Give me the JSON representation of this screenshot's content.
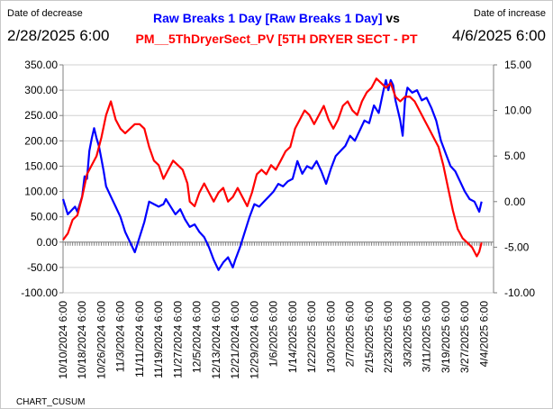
{
  "header": {
    "left_caption": "Date of decrease",
    "right_caption": "Date of increase",
    "left_date": "2/28/2025 6:00",
    "right_date": "4/6/2025 6:00",
    "title_blue": "Raw Breaks 1 Day [Raw Breaks 1 Day]",
    "title_vs": "vs",
    "title_red": "PM__5ThDryerSect_PV [5TH DRYER SECT -      PT   ",
    "footer": "CHART_CUSUM"
  },
  "colors": {
    "series_blue": "#0000ff",
    "series_red": "#ff0000"
  },
  "chart_data": {
    "type": "line",
    "y_left_range": [
      -100,
      350
    ],
    "y_right_range": [
      -10,
      15
    ],
    "y_left_ticks": [
      "350.00",
      "300.00",
      "250.00",
      "200.00",
      "150.00",
      "100.00",
      "50.00",
      "0.00",
      "-50.00",
      "-100.00"
    ],
    "y_right_ticks": [
      "15.00",
      "10.00",
      "5.00",
      "0.00",
      "-5.00",
      "-10.00"
    ],
    "x_labels": [
      "10/10/2024 6:00",
      "10/18/2024 6:00",
      "10/26/2024 6:00",
      "11/3/2024 6:00",
      "11/11/2024 6:00",
      "11/19/2024 6:00",
      "11/27/2024 6:00",
      "12/5/2024 6:00",
      "12/13/2024 6:00",
      "12/21/2024 6:00",
      "12/29/2024 6:00",
      "1/6/2025 6:00",
      "1/14/2025 6:00",
      "1/22/2025 6:00",
      "1/30/2025 6:00",
      "2/7/2025 6:00",
      "2/15/2025 6:00",
      "2/23/2025 6:00",
      "3/3/2025 6:00",
      "3/11/2025 6:00",
      "3/19/2025 6:00",
      "3/27/2025 6:00",
      "4/4/2025 6:00"
    ],
    "x_range_days": [
      0,
      180
    ],
    "grid": true,
    "series": [
      {
        "axis": "left",
        "color": "#0000ff",
        "points": [
          [
            0,
            85
          ],
          [
            2,
            55
          ],
          [
            4,
            65
          ],
          [
            5,
            70
          ],
          [
            6,
            60
          ],
          [
            7,
            75
          ],
          [
            8,
            90
          ],
          [
            9,
            130
          ],
          [
            10,
            125
          ],
          [
            11,
            180
          ],
          [
            12,
            205
          ],
          [
            13,
            225
          ],
          [
            14,
            205
          ],
          [
            15,
            190
          ],
          [
            16,
            165
          ],
          [
            17,
            140
          ],
          [
            18,
            110
          ],
          [
            20,
            90
          ],
          [
            22,
            70
          ],
          [
            24,
            50
          ],
          [
            26,
            20
          ],
          [
            28,
            0
          ],
          [
            30,
            -20
          ],
          [
            32,
            10
          ],
          [
            34,
            40
          ],
          [
            36,
            80
          ],
          [
            38,
            75
          ],
          [
            40,
            70
          ],
          [
            42,
            75
          ],
          [
            43,
            85
          ],
          [
            45,
            70
          ],
          [
            47,
            55
          ],
          [
            49,
            65
          ],
          [
            51,
            45
          ],
          [
            53,
            30
          ],
          [
            55,
            35
          ],
          [
            57,
            20
          ],
          [
            59,
            10
          ],
          [
            61,
            -10
          ],
          [
            63,
            -35
          ],
          [
            65,
            -55
          ],
          [
            67,
            -40
          ],
          [
            69,
            -30
          ],
          [
            71,
            -50
          ],
          [
            72,
            -35
          ],
          [
            74,
            -10
          ],
          [
            76,
            20
          ],
          [
            78,
            50
          ],
          [
            80,
            75
          ],
          [
            82,
            70
          ],
          [
            84,
            80
          ],
          [
            86,
            90
          ],
          [
            88,
            100
          ],
          [
            90,
            115
          ],
          [
            92,
            110
          ],
          [
            94,
            120
          ],
          [
            96,
            125
          ],
          [
            98,
            160
          ],
          [
            100,
            135
          ],
          [
            102,
            150
          ],
          [
            104,
            145
          ],
          [
            106,
            160
          ],
          [
            108,
            140
          ],
          [
            110,
            115
          ],
          [
            112,
            145
          ],
          [
            114,
            170
          ],
          [
            116,
            180
          ],
          [
            118,
            190
          ],
          [
            120,
            210
          ],
          [
            122,
            200
          ],
          [
            124,
            220
          ],
          [
            126,
            240
          ],
          [
            128,
            235
          ],
          [
            130,
            270
          ],
          [
            132,
            255
          ],
          [
            134,
            300
          ],
          [
            135,
            320
          ],
          [
            136,
            300
          ],
          [
            137,
            320
          ],
          [
            138,
            310
          ],
          [
            139,
            280
          ],
          [
            140,
            260
          ],
          [
            141,
            240
          ],
          [
            142,
            210
          ],
          [
            143,
            280
          ],
          [
            144,
            305
          ],
          [
            146,
            295
          ],
          [
            148,
            300
          ],
          [
            150,
            280
          ],
          [
            152,
            285
          ],
          [
            154,
            265
          ],
          [
            156,
            240
          ],
          [
            158,
            200
          ],
          [
            160,
            175
          ],
          [
            162,
            150
          ],
          [
            164,
            140
          ],
          [
            166,
            120
          ],
          [
            168,
            100
          ],
          [
            170,
            85
          ],
          [
            172,
            80
          ],
          [
            174,
            60
          ],
          [
            175,
            80
          ]
        ]
      },
      {
        "axis": "right",
        "color": "#ff0000",
        "points": [
          [
            0,
            -4.2
          ],
          [
            2,
            -3.5
          ],
          [
            4,
            -2
          ],
          [
            6,
            -1.5
          ],
          [
            8,
            0.5
          ],
          [
            10,
            3
          ],
          [
            12,
            4
          ],
          [
            14,
            5
          ],
          [
            16,
            7
          ],
          [
            18,
            9.5
          ],
          [
            20,
            11
          ],
          [
            22,
            9
          ],
          [
            24,
            8
          ],
          [
            26,
            7.5
          ],
          [
            28,
            8
          ],
          [
            30,
            8.5
          ],
          [
            32,
            8.5
          ],
          [
            34,
            8
          ],
          [
            36,
            6
          ],
          [
            38,
            4.5
          ],
          [
            40,
            4
          ],
          [
            42,
            2.5
          ],
          [
            44,
            3.5
          ],
          [
            46,
            4.5
          ],
          [
            48,
            4
          ],
          [
            50,
            3.5
          ],
          [
            52,
            2
          ],
          [
            53,
            0
          ],
          [
            55,
            -0.5
          ],
          [
            57,
            1
          ],
          [
            59,
            2
          ],
          [
            61,
            1
          ],
          [
            63,
            0
          ],
          [
            65,
            1
          ],
          [
            67,
            1.5
          ],
          [
            69,
            0
          ],
          [
            71,
            0.5
          ],
          [
            73,
            1.5
          ],
          [
            75,
            0.5
          ],
          [
            77,
            -0.5
          ],
          [
            79,
            1
          ],
          [
            81,
            3
          ],
          [
            83,
            3.5
          ],
          [
            85,
            3
          ],
          [
            87,
            4
          ],
          [
            89,
            3.5
          ],
          [
            91,
            4.5
          ],
          [
            93,
            5.5
          ],
          [
            95,
            6
          ],
          [
            97,
            8
          ],
          [
            99,
            9
          ],
          [
            101,
            10
          ],
          [
            103,
            9.5
          ],
          [
            105,
            8.5
          ],
          [
            107,
            9.5
          ],
          [
            109,
            10.5
          ],
          [
            111,
            9
          ],
          [
            113,
            8
          ],
          [
            115,
            9
          ],
          [
            117,
            10.5
          ],
          [
            119,
            11
          ],
          [
            121,
            10
          ],
          [
            123,
            9.5
          ],
          [
            125,
            11
          ],
          [
            127,
            12
          ],
          [
            129,
            12.5
          ],
          [
            131,
            13.5
          ],
          [
            133,
            13
          ],
          [
            135,
            12.5
          ],
          [
            137,
            13
          ],
          [
            139,
            11.5
          ],
          [
            141,
            11
          ],
          [
            143,
            11.5
          ],
          [
            145,
            11.5
          ],
          [
            147,
            11
          ],
          [
            149,
            10
          ],
          [
            151,
            9
          ],
          [
            153,
            8
          ],
          [
            155,
            7
          ],
          [
            157,
            6
          ],
          [
            159,
            4
          ],
          [
            161,
            1.5
          ],
          [
            163,
            -1
          ],
          [
            165,
            -3
          ],
          [
            167,
            -4
          ],
          [
            169,
            -4.5
          ],
          [
            171,
            -5
          ],
          [
            173,
            -6
          ],
          [
            174,
            -5.5
          ],
          [
            175,
            -4.5
          ]
        ]
      }
    ]
  }
}
